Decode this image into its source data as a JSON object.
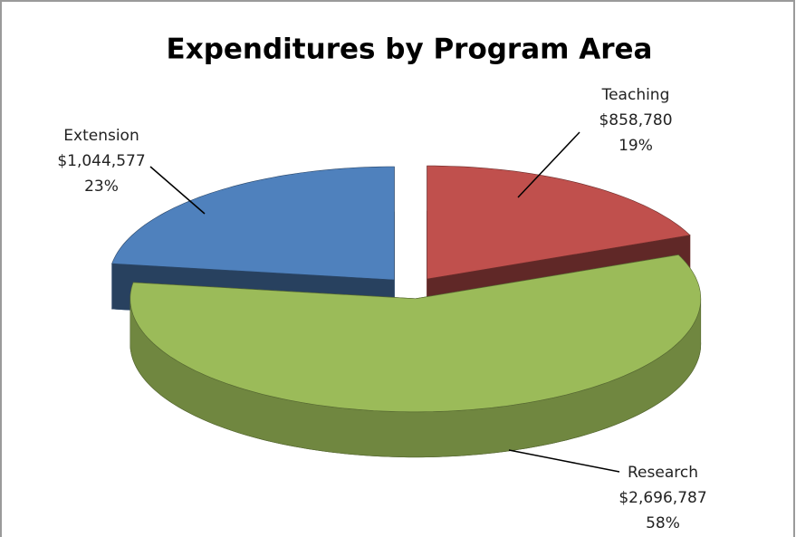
{
  "chart_data": {
    "type": "pie",
    "title": "Expenditures by Program Area",
    "categories": [
      "Teaching",
      "Research",
      "Extension"
    ],
    "values": [
      858780,
      2696787,
      1044577
    ],
    "value_labels": [
      "$858,780",
      "$2,696,787",
      "$1,044,577"
    ],
    "percentages": [
      19,
      58,
      23
    ],
    "percentage_labels": [
      "19%",
      "58%",
      "23%"
    ],
    "colors": [
      "#c0504d",
      "#9bbb59",
      "#4f81bd"
    ],
    "start_angle": 0,
    "direction": "clockwise",
    "three_d": true
  }
}
